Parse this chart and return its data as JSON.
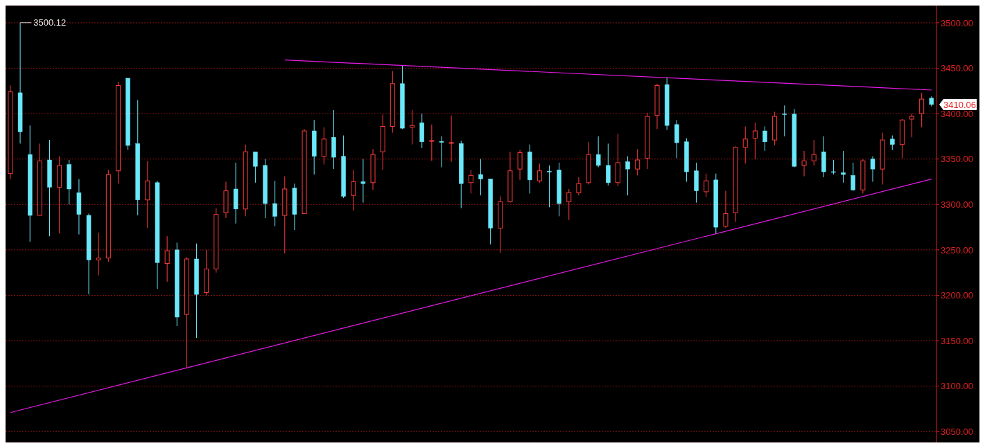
{
  "chart_data": {
    "type": "candlestick",
    "categories": [
      null,
      null,
      null,
      null,
      null,
      null,
      null,
      null,
      null,
      null,
      null,
      null,
      null,
      null,
      null,
      null,
      null,
      null,
      null,
      null,
      null,
      null,
      null,
      null,
      null,
      null,
      null,
      null,
      null,
      null,
      null,
      null,
      null,
      null,
      null,
      null,
      null,
      null,
      null,
      null,
      null,
      null,
      null,
      null,
      null,
      null,
      null,
      null,
      null,
      null,
      null,
      null,
      null,
      null,
      null,
      null,
      null,
      null,
      null,
      null,
      null,
      null,
      null,
      null,
      null,
      null,
      null,
      null,
      null,
      null,
      null,
      null,
      null,
      null,
      null,
      null,
      null,
      null,
      null,
      null,
      null,
      null,
      null,
      null,
      null,
      null,
      null,
      null,
      null,
      null,
      null,
      null,
      null,
      null,
      null
    ],
    "ohlc": [
      [
        3334,
        3431,
        3328,
        3424
      ],
      [
        3423,
        3500.12,
        3367,
        3380
      ],
      [
        3355,
        3387,
        3259,
        3288
      ],
      [
        3288,
        3367,
        3288,
        3348
      ],
      [
        3349,
        3371,
        3265,
        3319
      ],
      [
        3319,
        3353,
        3268,
        3343
      ],
      [
        3344,
        3349,
        3300,
        3317
      ],
      [
        3313,
        3328,
        3267,
        3289
      ],
      [
        3288,
        3290,
        3201,
        3239
      ],
      [
        3239,
        3269,
        3222,
        3241
      ],
      [
        3241,
        3338,
        3237,
        3333
      ],
      [
        3337,
        3435,
        3323,
        3431
      ],
      [
        3439,
        3439,
        3360,
        3365
      ],
      [
        3367,
        3415,
        3288,
        3305
      ],
      [
        3305,
        3348,
        3274,
        3326
      ],
      [
        3324,
        3326,
        3207,
        3236
      ],
      [
        3235,
        3265,
        3215,
        3249
      ],
      [
        3250,
        3258,
        3166,
        3176
      ],
      [
        3179,
        3242,
        3120,
        3240
      ],
      [
        3240,
        3257,
        3153,
        3201
      ],
      [
        3203,
        3250,
        3200,
        3229
      ],
      [
        3229,
        3296,
        3225,
        3289
      ],
      [
        3291,
        3325,
        3285,
        3315
      ],
      [
        3317,
        3346,
        3279,
        3295
      ],
      [
        3295,
        3366,
        3287,
        3358
      ],
      [
        3358,
        3358,
        3324,
        3342
      ],
      [
        3343,
        3350,
        3285,
        3301
      ],
      [
        3301,
        3326,
        3276,
        3287
      ],
      [
        3288,
        3331,
        3246,
        3317
      ],
      [
        3318,
        3323,
        3272,
        3289
      ],
      [
        3290,
        3383,
        3290,
        3381
      ],
      [
        3381,
        3393,
        3333,
        3353
      ],
      [
        3353,
        3385,
        3344,
        3372
      ],
      [
        3374,
        3404,
        3339,
        3352
      ],
      [
        3353,
        3376,
        3307,
        3309
      ],
      [
        3310,
        3338,
        3293,
        3325
      ],
      [
        3325,
        3350,
        3302,
        3323
      ],
      [
        3324,
        3361,
        3316,
        3355
      ],
      [
        3358,
        3399,
        3338,
        3386
      ],
      [
        3386,
        3447,
        3379,
        3433
      ],
      [
        3433,
        3453,
        3383,
        3384
      ],
      [
        3385,
        3404,
        3366,
        3387
      ],
      [
        3390,
        3400,
        3362,
        3369
      ],
      [
        3369.8,
        3388,
        3348,
        3370.3
      ],
      [
        3369.5,
        3375,
        3341,
        3368.3
      ],
      [
        3367.6,
        3398,
        3347,
        3368.1
      ],
      [
        3367,
        3370,
        3296,
        3323
      ],
      [
        3324,
        3338,
        3312,
        3332
      ],
      [
        3333,
        3350,
        3310,
        3328
      ],
      [
        3328,
        3328.4,
        3256,
        3274
      ],
      [
        3274,
        3309,
        3247,
        3303
      ],
      [
        3303,
        3358,
        3302,
        3337
      ],
      [
        3339,
        3360,
        3327,
        3357
      ],
      [
        3358,
        3366,
        3312,
        3327
      ],
      [
        3326,
        3345,
        3324,
        3337
      ],
      [
        3336.6,
        3343,
        3297,
        3336.4
      ],
      [
        3338,
        3346,
        3287,
        3301
      ],
      [
        3303,
        3317,
        3283,
        3313
      ],
      [
        3313,
        3330,
        3310,
        3323
      ],
      [
        3324,
        3369,
        3322,
        3355
      ],
      [
        3355,
        3375,
        3341,
        3343
      ],
      [
        3343,
        3367,
        3321,
        3324
      ],
      [
        3324,
        3378,
        3320,
        3346
      ],
      [
        3347,
        3353,
        3310,
        3339
      ],
      [
        3339,
        3361,
        3332,
        3349
      ],
      [
        3351,
        3401,
        3339,
        3397
      ],
      [
        3398,
        3433,
        3383,
        3431
      ],
      [
        3432,
        3440,
        3382,
        3387
      ],
      [
        3388,
        3393,
        3351,
        3368
      ],
      [
        3369,
        3373,
        3325,
        3336
      ],
      [
        3337,
        3346,
        3302,
        3315
      ],
      [
        3314,
        3334,
        3308,
        3326
      ],
      [
        3327,
        3334,
        3268,
        3275
      ],
      [
        3276,
        3315,
        3274,
        3290
      ],
      [
        3291,
        3364,
        3281,
        3363
      ],
      [
        3363,
        3386,
        3345,
        3372
      ],
      [
        3373,
        3390,
        3350,
        3381
      ],
      [
        3381,
        3386,
        3359,
        3369
      ],
      [
        3371,
        3402,
        3365,
        3397
      ],
      [
        3399.8,
        3409,
        3375,
        3399
      ],
      [
        3399.5,
        3405,
        3341,
        3342
      ],
      [
        3343,
        3359,
        3331,
        3348
      ],
      [
        3348,
        3371,
        3343,
        3355
      ],
      [
        3358,
        3375,
        3330,
        3336
      ],
      [
        3336.1,
        3349,
        3333,
        3335.9
      ],
      [
        3335,
        3359,
        3324,
        3333
      ],
      [
        3332,
        3346,
        3315,
        3316
      ],
      [
        3316,
        3350,
        3312,
        3348
      ],
      [
        3350,
        3353,
        3325,
        3339
      ],
      [
        3339,
        3379,
        3322,
        3371
      ],
      [
        3372,
        3376,
        3360,
        3366
      ],
      [
        3366,
        3394,
        3351,
        3393
      ],
      [
        3394,
        3400,
        3374,
        3397
      ],
      [
        3400,
        3423,
        3385,
        3416
      ],
      [
        3417,
        3419,
        3408,
        3410.06
      ]
    ],
    "colors": [
      "#ff3c3c",
      "#6ae8fa",
      "#6ae8fa",
      "#ff3c3c",
      "#6ae8fa",
      "#ff3c3c",
      "#6ae8fa",
      "#6ae8fa",
      "#6ae8fa",
      "#ff3c3c",
      "#ff3c3c",
      "#ff3c3c",
      "#6ae8fa",
      "#6ae8fa",
      "#ff3c3c",
      "#6ae8fa",
      "#ff3c3c",
      "#6ae8fa",
      "#ff3c3c",
      "#6ae8fa",
      "#ff3c3c",
      "#ff3c3c",
      "#ff3c3c",
      "#6ae8fa",
      "#ff3c3c",
      "#6ae8fa",
      "#6ae8fa",
      "#6ae8fa",
      "#ff3c3c",
      "#6ae8fa",
      "#ff3c3c",
      "#6ae8fa",
      "#ff3c3c",
      "#6ae8fa",
      "#6ae8fa",
      "#ff3c3c",
      "#6ae8fa",
      "#ff3c3c",
      "#ff3c3c",
      "#ff3c3c",
      "#6ae8fa",
      "#ff3c3c",
      "#6ae8fa",
      "#ff3c3c",
      "#6ae8fa",
      "#ff3c3c",
      "#6ae8fa",
      "#ff3c3c",
      "#6ae8fa",
      "#6ae8fa",
      "#ff3c3c",
      "#ff3c3c",
      "#ff3c3c",
      "#6ae8fa",
      "#ff3c3c",
      "#6ae8fa",
      "#6ae8fa",
      "#ff3c3c",
      "#ff3c3c",
      "#ff3c3c",
      "#6ae8fa",
      "#6ae8fa",
      "#ff3c3c",
      "#6ae8fa",
      "#ff3c3c",
      "#ff3c3c",
      "#ff3c3c",
      "#6ae8fa",
      "#6ae8fa",
      "#6ae8fa",
      "#6ae8fa",
      "#ff3c3c",
      "#6ae8fa",
      "#ff3c3c",
      "#ff3c3c",
      "#ff3c3c",
      "#ff3c3c",
      "#6ae8fa",
      "#ff3c3c",
      "#6ae8fa",
      "#6ae8fa",
      "#ff3c3c",
      "#ff3c3c",
      "#6ae8fa",
      "#6ae8fa",
      "#6ae8fa",
      "#6ae8fa",
      "#ff3c3c",
      "#6ae8fa",
      "#ff3c3c",
      "#6ae8fa",
      "#ff3c3c",
      "#ff3c3c",
      "#ff3c3c",
      "#6ae8fa"
    ],
    "series": [
      {
        "type": "line",
        "color": "#e81ce8",
        "values": [
          null,
          null,
          null,
          null,
          null,
          null,
          null,
          null,
          null,
          null,
          null,
          null,
          null,
          null,
          null,
          null,
          null,
          null,
          null,
          null,
          null,
          null,
          null,
          null,
          null,
          null,
          null,
          null,
          3459,
          null,
          null,
          null,
          null,
          null,
          null,
          null,
          null,
          null,
          null,
          null,
          null,
          null,
          null,
          null,
          null,
          null,
          null,
          null,
          null,
          null,
          null,
          null,
          null,
          null,
          null,
          null,
          null,
          null,
          null,
          null,
          null,
          null,
          null,
          null,
          null,
          null,
          null,
          null,
          null,
          null,
          null,
          null,
          null,
          null,
          null,
          null,
          null,
          null,
          null,
          null,
          null,
          null,
          null,
          null,
          null,
          null,
          null,
          null,
          null,
          null,
          null,
          null,
          null,
          null,
          3426
        ]
      },
      {
        "type": "line",
        "color": "#e81ce8",
        "values": [
          3071,
          null,
          null,
          null,
          null,
          null,
          null,
          null,
          null,
          null,
          null,
          null,
          null,
          null,
          null,
          null,
          null,
          null,
          null,
          null,
          null,
          null,
          null,
          null,
          null,
          null,
          null,
          null,
          null,
          null,
          null,
          null,
          null,
          null,
          null,
          null,
          null,
          null,
          null,
          null,
          null,
          null,
          null,
          null,
          null,
          null,
          null,
          null,
          null,
          null,
          null,
          null,
          null,
          null,
          null,
          null,
          null,
          null,
          null,
          null,
          null,
          null,
          null,
          null,
          null,
          null,
          null,
          null,
          null,
          null,
          null,
          null,
          null,
          null,
          null,
          null,
          null,
          null,
          null,
          null,
          null,
          null,
          null,
          null,
          null,
          null,
          null,
          null,
          null,
          null,
          null,
          null,
          null,
          null,
          3328
        ]
      }
    ],
    "ylim": [
      3038,
      3519
    ],
    "yticks": [
      {
        "value": 3050,
        "label": "3050.00"
      },
      {
        "value": 3100,
        "label": "3100.00"
      },
      {
        "value": 3150,
        "label": "3150.00"
      },
      {
        "value": 3200,
        "label": "3200.00"
      },
      {
        "value": 3250,
        "label": "3250.00"
      },
      {
        "value": 3300,
        "label": "3300.00"
      },
      {
        "value": 3350,
        "label": "3350.00"
      },
      {
        "value": 3400,
        "label": "3400.00"
      },
      {
        "value": 3450,
        "label": "3450.00"
      },
      {
        "value": 3500,
        "label": "3500.00"
      }
    ],
    "grid": "y",
    "tick_labels": "y",
    "annotations": [
      "3500.12",
      "3410.06"
    ]
  }
}
